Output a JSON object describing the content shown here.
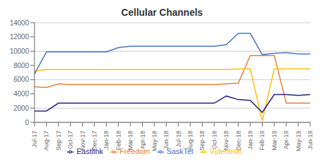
{
  "chart_data": {
    "type": "line",
    "title": "Cellular Channels",
    "categories": [
      "Jul-17",
      "Aug-17",
      "Sep-17",
      "Oct-17",
      "Nov-17",
      "Dec-17",
      "Jan-18",
      "Feb-18",
      "Mar-18",
      "Apr-18",
      "May-18",
      "Jun-18",
      "Jul-18",
      "Aug-18",
      "Sep-18",
      "Oct-18",
      "Nov-18",
      "Dec-18",
      "Jan-19",
      "Feb-19",
      "Mar-19",
      "Apr-19",
      "May-19",
      "Jun-19"
    ],
    "series": [
      {
        "name": "Freedom",
        "color": "#ED7D31",
        "values": [
          5000,
          4900,
          5400,
          5300,
          5300,
          5300,
          5300,
          5300,
          5300,
          5300,
          5300,
          5300,
          5300,
          5300,
          5300,
          5300,
          5400,
          5500,
          9400,
          9400,
          9400,
          2700,
          2700,
          2700
        ]
      },
      {
        "name": "Videotron",
        "color": "#FFC000",
        "values": [
          7200,
          7400,
          7400,
          7400,
          7400,
          7400,
          7400,
          7400,
          7400,
          7400,
          7400,
          7400,
          7400,
          7400,
          7400,
          7400,
          7400,
          7500,
          7500,
          200,
          7500,
          7500,
          7500,
          7500
        ]
      },
      {
        "name": "SaskTel",
        "color": "#4472C4",
        "values": [
          6800,
          9900,
          9900,
          9900,
          9900,
          9900,
          9900,
          10500,
          10700,
          10700,
          10700,
          10700,
          10700,
          10700,
          10700,
          10700,
          10900,
          12500,
          12500,
          9500,
          9700,
          9800,
          9600,
          9600
        ]
      },
      {
        "name": "Eastlink",
        "color": "#1F1F8A",
        "values": [
          1600,
          1600,
          2700,
          2700,
          2700,
          2700,
          2700,
          2700,
          2700,
          2700,
          2700,
          2700,
          2700,
          2700,
          2700,
          2700,
          3700,
          3200,
          3100,
          1400,
          3900,
          3900,
          3800,
          3900
        ]
      }
    ],
    "ylim": [
      0,
      14000
    ],
    "yticks": [
      0,
      2000,
      4000,
      6000,
      8000,
      10000,
      12000,
      14000
    ],
    "grid": true,
    "legend": "bottom"
  }
}
